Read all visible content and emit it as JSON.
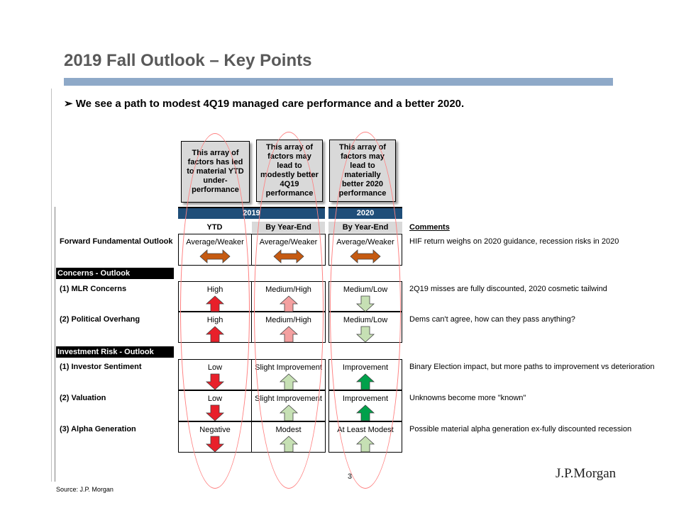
{
  "title": "2019 Fall Outlook – Key Points",
  "bullet": "We see a path to modest 4Q19 managed care performance and a better 2020.",
  "bullet_marker": "➢",
  "callouts": [
    "This array of factors has led to material YTD under-performance",
    "This array of factors may lead to modestly better 4Q19 performance",
    "This array of factors may lead to materially better 2020 performance"
  ],
  "year_headers": [
    "2019",
    "2020"
  ],
  "col_headers": [
    "YTD",
    "By Year-End",
    "By Year-End"
  ],
  "comments_header": "Comments",
  "sections": [
    "Concerns - Outlook",
    "Investment Risk - Outlook"
  ],
  "rows": [
    {
      "label": "Forward Fundamental Outlook",
      "cells": [
        "Average/Weaker",
        "Average/Weaker",
        "Average/Weaker"
      ],
      "arrows": [
        "both",
        "both",
        "both"
      ],
      "comment": "HIF return weighs on 2020 guidance, recession risks in 2020"
    },
    {
      "label": "(1) MLR Concerns",
      "cells": [
        "High",
        "Medium/High",
        "Medium/Low"
      ],
      "arrows": [
        "up-red",
        "up-pink",
        "down-lightgreen"
      ],
      "comment": "2Q19 misses are fully discounted, 2020 cosmetic tailwind"
    },
    {
      "label": "(2) Political Overhang",
      "cells": [
        "High",
        "Medium/High",
        "Medium/Low"
      ],
      "arrows": [
        "up-red",
        "up-pink",
        "down-lightgreen"
      ],
      "comment": "Dems can't agree, how can they pass anything?"
    },
    {
      "label": "(1) Investor Sentiment",
      "cells": [
        "Low",
        "Slight Improvement",
        "Improvement"
      ],
      "arrows": [
        "down-red",
        "up-lightgreen",
        "up-green"
      ],
      "comment": "Binary Election impact, but more paths to improvement vs deterioration"
    },
    {
      "label": "(2) Valuation",
      "cells": [
        "Low",
        "Slight Improvement",
        "Improvement"
      ],
      "arrows": [
        "down-red",
        "up-lightgreen",
        "up-green"
      ],
      "comment": "Unknowns become more \"known\""
    },
    {
      "label": "(3) Alpha Generation",
      "cells": [
        "Negative",
        "Modest",
        "At Least Modest"
      ],
      "arrows": [
        "down-red",
        "up-lightgreen",
        "up-lightgreen"
      ],
      "comment": "Possible material alpha generation ex-fully discounted recession"
    }
  ],
  "arrow_colors": {
    "red": "#e8202a",
    "pink": "#f4a0a0",
    "green": "#00a14b",
    "lightgreen": "#c6e0b4",
    "orange": "#c55a11"
  },
  "page_number": "3",
  "logo": "J.P.Morgan",
  "source": "Source: J.P. Morgan"
}
